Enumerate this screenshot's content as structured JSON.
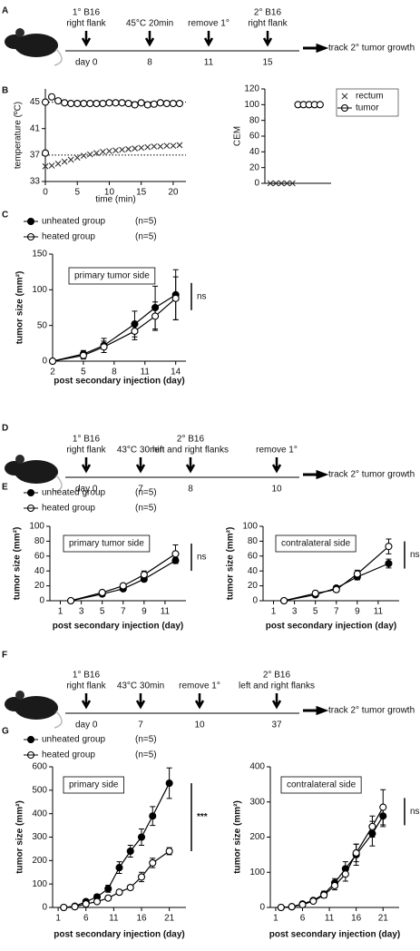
{
  "panel_labels": [
    "A",
    "B",
    "C",
    "D",
    "E",
    "F",
    "G"
  ],
  "timelines": [
    {
      "events": [
        {
          "label_lines": [
            "1° B16",
            "right flank"
          ],
          "day": "day 0"
        },
        {
          "label_lines": [
            "45°C 20min"
          ],
          "day": "8"
        },
        {
          "label_lines": [
            "remove 1°"
          ],
          "day": "11"
        },
        {
          "label_lines": [
            "2° B16",
            "right flank"
          ],
          "day": "15"
        }
      ],
      "end_label": "track 2° tumor growth"
    },
    {
      "events": [
        {
          "label_lines": [
            "1° B16",
            "right flank"
          ],
          "day": "day 0"
        },
        {
          "label_lines": [
            "43°C 30min"
          ],
          "day": "7"
        },
        {
          "label_lines": [
            "2° B16",
            "left and right flanks"
          ],
          "day": "8"
        },
        {
          "label_lines": [
            "remove 1°"
          ],
          "day": "10"
        }
      ],
      "end_label": "track 2° tumor growth"
    },
    {
      "events": [
        {
          "label_lines": [
            "1° B16",
            "right flank"
          ],
          "day": "day 0"
        },
        {
          "label_lines": [
            "43°C 30min"
          ],
          "day": "7"
        },
        {
          "label_lines": [
            "remove 1°"
          ],
          "day": "10"
        },
        {
          "label_lines": [
            "2° B16",
            "left and right flanks"
          ],
          "day": "37"
        }
      ],
      "end_label": "track 2° tumor growth"
    }
  ],
  "chart_data": [
    {
      "type": "scatter",
      "x_label": "time (min)",
      "y_label": "temperature (ºC)",
      "xlim": [
        0,
        22
      ],
      "xticks": [
        0,
        5,
        10,
        15,
        20
      ],
      "ylim": [
        33,
        47
      ],
      "yticks": [
        33,
        37,
        41,
        45
      ],
      "reference_lines": [
        45,
        37
      ],
      "series": [
        {
          "marker": "circle-open",
          "color": "#333",
          "x": [
            0,
            0,
            1,
            2,
            3,
            4,
            5,
            6,
            7,
            8,
            9,
            10,
            11,
            12,
            13,
            14,
            15,
            16,
            17,
            18,
            19,
            20,
            21
          ],
          "values": [
            37.3,
            45,
            45.8,
            45.2,
            44.9,
            44.8,
            44.8,
            44.8,
            44.8,
            44.8,
            44.8,
            44.9,
            44.9,
            44.9,
            44.8,
            44.6,
            44.9,
            44.6,
            44.7,
            44.9,
            44.8,
            44.8,
            44.8
          ]
        },
        {
          "marker": "cross",
          "color": "#333",
          "x": [
            0,
            1,
            2,
            3,
            4,
            5,
            6,
            7,
            8,
            9,
            10,
            11,
            12,
            13,
            14,
            15,
            16,
            17,
            18,
            19,
            20,
            21
          ],
          "values": [
            35.3,
            35.4,
            35.7,
            36.0,
            36.3,
            36.6,
            36.9,
            37.1,
            37.3,
            37.5,
            37.6,
            37.7,
            37.8,
            37.9,
            38.0,
            38.1,
            38.2,
            38.3,
            38.3,
            38.4,
            38.4,
            38.5
          ]
        }
      ]
    },
    {
      "type": "scatter",
      "y_label": "CEM",
      "xlim": [
        0,
        12
      ],
      "ylim": [
        0,
        120
      ],
      "yticks": [
        0,
        20,
        40,
        60,
        80,
        100,
        120
      ],
      "series": [
        {
          "name": "rectum",
          "marker": "cross",
          "color": "#333",
          "x": [
            1,
            2,
            3,
            4,
            5
          ],
          "values": [
            0,
            0,
            0,
            0,
            0
          ]
        },
        {
          "name": "tumor",
          "marker": "circle-open",
          "color": "#333",
          "x": [
            6,
            7,
            8,
            9,
            10
          ],
          "values": [
            100,
            100,
            100,
            100,
            100
          ]
        }
      ]
    },
    {
      "type": "line",
      "x_label": "post secondary injection (day)",
      "y_label": "tumor size (mm²)",
      "xlim": [
        2,
        15
      ],
      "xticks": [
        2,
        5,
        8,
        11,
        14
      ],
      "ylim": [
        0,
        150
      ],
      "yticks": [
        0,
        50,
        100,
        150
      ],
      "annotation": "primary tumor side",
      "significance": "ns",
      "series": [
        {
          "name": "unheated group",
          "note": "(n=5)",
          "marker": "circle-filled",
          "color": "#000",
          "x": [
            2,
            5,
            7,
            10,
            12,
            14
          ],
          "values": [
            0,
            10,
            22,
            52,
            75,
            93
          ],
          "errors": [
            0,
            5,
            10,
            18,
            30,
            35
          ]
        },
        {
          "name": "heated group",
          "note": "(n=5)",
          "marker": "circle-open",
          "color": "#000",
          "x": [
            2,
            5,
            7,
            10,
            12,
            14
          ],
          "values": [
            0,
            8,
            20,
            42,
            63,
            88
          ],
          "errors": [
            0,
            5,
            8,
            12,
            20,
            30
          ]
        }
      ]
    },
    {
      "type": "line",
      "x_label": "post secondary injection (day)",
      "y_label": "tumor size (mm²)",
      "xlim": [
        0,
        13
      ],
      "xticks": [
        1,
        3,
        5,
        7,
        9,
        11
      ],
      "ylim": [
        0,
        100
      ],
      "yticks": [
        0,
        20,
        40,
        60,
        80,
        100
      ],
      "annotation": "primary tumor side",
      "significance": "ns",
      "series": [
        {
          "name": "unheated group",
          "note": "(n=5)",
          "marker": "circle-filled",
          "color": "#000",
          "x": [
            2,
            5,
            7,
            9,
            12
          ],
          "values": [
            0,
            9,
            16,
            29,
            54
          ],
          "errors": [
            0,
            2,
            2,
            3,
            4
          ]
        },
        {
          "name": "heated group",
          "note": "(n=5)",
          "marker": "circle-open",
          "color": "#000",
          "x": [
            2,
            5,
            7,
            9,
            12
          ],
          "values": [
            0,
            11,
            20,
            35,
            63
          ],
          "errors": [
            0,
            2,
            3,
            5,
            12
          ]
        }
      ]
    },
    {
      "type": "line",
      "x_label": "post secondary injection (day)",
      "y_label": "tumor size (mm²)",
      "xlim": [
        0,
        13
      ],
      "xticks": [
        1,
        3,
        5,
        7,
        9,
        11
      ],
      "ylim": [
        0,
        100
      ],
      "yticks": [
        0,
        20,
        40,
        60,
        80,
        100
      ],
      "annotation": "contralateral side",
      "significance": "ns",
      "series": [
        {
          "marker": "circle-filled",
          "color": "#000",
          "x": [
            2,
            5,
            7,
            9,
            12
          ],
          "values": [
            0,
            8,
            17,
            32,
            50
          ],
          "errors": [
            0,
            1,
            3,
            4,
            6
          ]
        },
        {
          "marker": "circle-open",
          "color": "#000",
          "x": [
            2,
            5,
            7,
            9,
            12
          ],
          "values": [
            0,
            10,
            15,
            36,
            73
          ],
          "errors": [
            0,
            2,
            3,
            5,
            10
          ]
        }
      ]
    },
    {
      "type": "line",
      "x_label": "post secondary injection (day)",
      "y_label": "tumor size (mm²)",
      "xlim": [
        0,
        24
      ],
      "xticks": [
        1,
        6,
        11,
        16,
        21
      ],
      "ylim": [
        0,
        600
      ],
      "yticks": [
        0,
        100,
        200,
        300,
        400,
        500,
        600
      ],
      "annotation": "primary side",
      "significance": "***",
      "series": [
        {
          "name": "unheated group",
          "note": "(n=5)",
          "marker": "circle-filled",
          "color": "#000",
          "x": [
            2,
            4,
            6,
            8,
            10,
            12,
            14,
            16,
            18,
            21
          ],
          "values": [
            0,
            5,
            25,
            45,
            80,
            170,
            240,
            300,
            390,
            530
          ],
          "errors": [
            0,
            3,
            8,
            10,
            15,
            25,
            25,
            35,
            40,
            65
          ]
        },
        {
          "name": "heated group",
          "note": "(n=5)",
          "marker": "circle-open",
          "color": "#000",
          "x": [
            2,
            4,
            6,
            8,
            10,
            12,
            14,
            16,
            18,
            21
          ],
          "values": [
            0,
            3,
            15,
            25,
            40,
            65,
            85,
            130,
            190,
            240
          ],
          "errors": [
            0,
            2,
            5,
            5,
            8,
            10,
            10,
            20,
            20,
            15
          ]
        }
      ]
    },
    {
      "type": "line",
      "x_label": "post secondary injection (day)",
      "y_label": "tumor size (mm²)",
      "xlim": [
        0,
        24
      ],
      "xticks": [
        1,
        6,
        11,
        16,
        21
      ],
      "ylim": [
        0,
        400
      ],
      "yticks": [
        0,
        100,
        200,
        300,
        400
      ],
      "annotation": "contralateral side",
      "significance": "ns",
      "series": [
        {
          "marker": "circle-filled",
          "color": "#000",
          "x": [
            2,
            4,
            6,
            8,
            10,
            12,
            14,
            16,
            19,
            21
          ],
          "values": [
            0,
            2,
            10,
            20,
            38,
            70,
            110,
            150,
            210,
            260
          ],
          "errors": [
            0,
            1,
            3,
            5,
            8,
            12,
            20,
            30,
            35,
            30
          ]
        },
        {
          "marker": "circle-open",
          "color": "#000",
          "x": [
            2,
            4,
            6,
            8,
            10,
            12,
            14,
            16,
            19,
            21
          ],
          "values": [
            0,
            2,
            8,
            18,
            35,
            62,
            95,
            155,
            230,
            285
          ],
          "errors": [
            0,
            1,
            3,
            5,
            8,
            12,
            20,
            25,
            30,
            50
          ]
        }
      ]
    }
  ]
}
